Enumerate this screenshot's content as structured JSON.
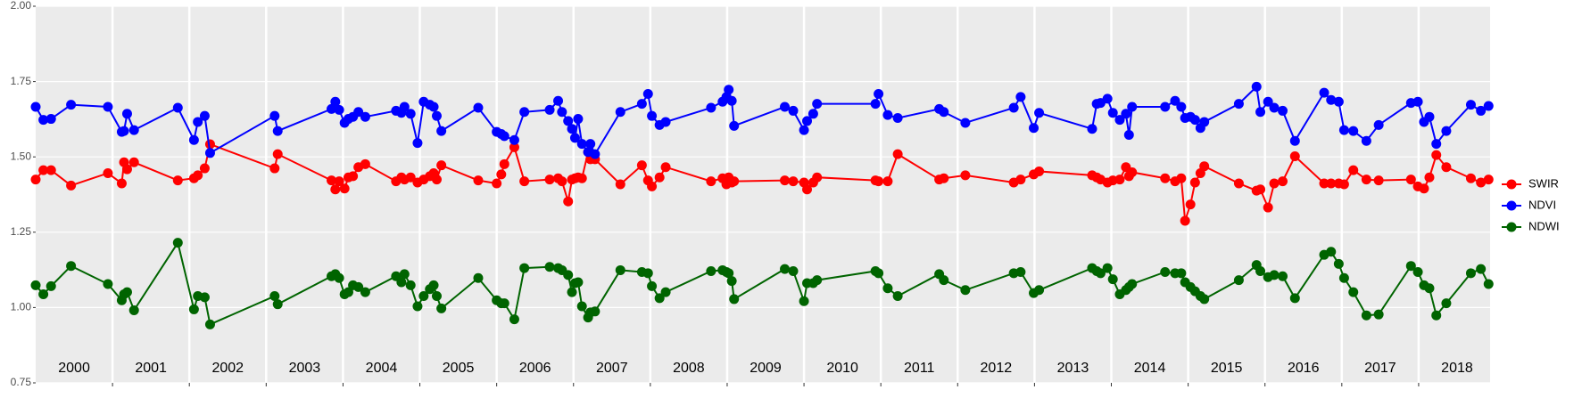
{
  "chart_data": {
    "type": "line",
    "markers": true,
    "x": [
      2000.0,
      2000.1,
      2000.2,
      2000.46,
      2000.94,
      2001.12,
      2001.15,
      2001.19,
      2001.28,
      2001.85,
      2002.06,
      2002.11,
      2002.2,
      2002.27,
      2003.11,
      2003.15,
      2003.85,
      2003.9,
      2003.95,
      2004.02,
      2004.07,
      2004.13,
      2004.2,
      2004.29,
      2004.69,
      2004.76,
      2004.8,
      2004.88,
      2004.97,
      2005.05,
      2005.13,
      2005.18,
      2005.22,
      2005.28,
      2005.76,
      2006.0,
      2006.06,
      2006.1,
      2006.23,
      2006.36,
      2006.69,
      2006.8,
      2006.85,
      2006.93,
      2006.98,
      2007.02,
      2007.06,
      2007.11,
      2007.19,
      2007.22,
      2007.28,
      2007.61,
      2007.89,
      2007.97,
      2008.02,
      2008.12,
      2008.2,
      2008.79,
      2008.94,
      2008.99,
      2009.02,
      2009.06,
      2009.09,
      2009.75,
      2009.86,
      2010.0,
      2010.04,
      2010.12,
      2010.17,
      2010.93,
      2010.97,
      2011.09,
      2011.22,
      2011.76,
      2011.82,
      2012.1,
      2012.73,
      2012.82,
      2012.99,
      2013.06,
      2013.75,
      2013.81,
      2013.86,
      2013.95,
      2014.02,
      2014.11,
      2014.19,
      2014.23,
      2014.27,
      2014.7,
      2014.83,
      2014.91,
      2014.96,
      2015.03,
      2015.09,
      2015.16,
      2015.21,
      2015.66,
      2015.89,
      2015.94,
      2016.04,
      2016.12,
      2016.23,
      2016.39,
      2016.77,
      2016.86,
      2016.96,
      2017.03,
      2017.15,
      2017.32,
      2017.48,
      2017.9,
      2017.99,
      2018.07,
      2018.14,
      2018.23,
      2018.36,
      2018.68,
      2018.81,
      2018.91
    ],
    "series": [
      {
        "name": "SWIR",
        "color": "#ff0000",
        "values": [
          1.425,
          1.456,
          1.456,
          1.405,
          1.446,
          1.412,
          1.482,
          1.459,
          1.482,
          1.422,
          1.429,
          1.439,
          1.462,
          1.542,
          1.462,
          1.509,
          1.422,
          1.392,
          1.419,
          1.395,
          1.432,
          1.436,
          1.466,
          1.476,
          1.419,
          1.432,
          1.425,
          1.432,
          1.415,
          1.425,
          1.436,
          1.446,
          1.425,
          1.472,
          1.422,
          1.412,
          1.442,
          1.476,
          1.532,
          1.419,
          1.425,
          1.429,
          1.419,
          1.352,
          1.425,
          1.429,
          1.432,
          1.429,
          1.516,
          1.492,
          1.492,
          1.409,
          1.472,
          1.422,
          1.402,
          1.432,
          1.466,
          1.419,
          1.429,
          1.409,
          1.432,
          1.415,
          1.419,
          1.422,
          1.419,
          1.415,
          1.392,
          1.415,
          1.432,
          1.422,
          1.419,
          1.419,
          1.509,
          1.425,
          1.429,
          1.439,
          1.415,
          1.425,
          1.442,
          1.452,
          1.439,
          1.432,
          1.425,
          1.415,
          1.422,
          1.425,
          1.466,
          1.436,
          1.449,
          1.429,
          1.419,
          1.429,
          1.288,
          1.342,
          1.415,
          1.446,
          1.469,
          1.412,
          1.388,
          1.392,
          1.332,
          1.412,
          1.419,
          1.502,
          1.412,
          1.412,
          1.412,
          1.409,
          1.456,
          1.425,
          1.422,
          1.425,
          1.402,
          1.395,
          1.432,
          1.506,
          1.466,
          1.429,
          1.415,
          1.425
        ]
      },
      {
        "name": "NDVI",
        "color": "#0000ff",
        "values": [
          1.666,
          1.623,
          1.626,
          1.673,
          1.666,
          1.583,
          1.586,
          1.643,
          1.589,
          1.663,
          1.556,
          1.616,
          1.636,
          1.513,
          1.636,
          1.586,
          1.659,
          1.683,
          1.656,
          1.613,
          1.626,
          1.633,
          1.649,
          1.633,
          1.653,
          1.646,
          1.666,
          1.643,
          1.546,
          1.683,
          1.673,
          1.666,
          1.636,
          1.586,
          1.663,
          1.583,
          1.576,
          1.569,
          1.556,
          1.649,
          1.656,
          1.686,
          1.649,
          1.619,
          1.593,
          1.563,
          1.626,
          1.543,
          1.516,
          1.543,
          1.509,
          1.649,
          1.676,
          1.709,
          1.636,
          1.606,
          1.616,
          1.663,
          1.683,
          1.699,
          1.723,
          1.686,
          1.603,
          1.666,
          1.653,
          1.589,
          1.619,
          1.643,
          1.676,
          1.676,
          1.709,
          1.639,
          1.629,
          1.659,
          1.649,
          1.613,
          1.663,
          1.699,
          1.596,
          1.646,
          1.593,
          1.676,
          1.679,
          1.693,
          1.646,
          1.623,
          1.643,
          1.573,
          1.666,
          1.666,
          1.686,
          1.666,
          1.629,
          1.633,
          1.623,
          1.596,
          1.616,
          1.676,
          1.733,
          1.649,
          1.683,
          1.663,
          1.653,
          1.553,
          1.713,
          1.689,
          1.683,
          1.589,
          1.586,
          1.553,
          1.606,
          1.679,
          1.683,
          1.616,
          1.633,
          1.543,
          1.586,
          1.673,
          1.653,
          1.669
        ]
      },
      {
        "name": "NDWI",
        "color": "#006400",
        "values": [
          1.074,
          1.044,
          1.071,
          1.138,
          1.078,
          1.024,
          1.044,
          1.051,
          0.991,
          1.215,
          0.994,
          1.038,
          1.034,
          0.944,
          1.038,
          1.011,
          1.104,
          1.111,
          1.098,
          1.044,
          1.051,
          1.074,
          1.068,
          1.051,
          1.104,
          1.084,
          1.111,
          1.074,
          1.004,
          1.038,
          1.061,
          1.074,
          1.038,
          0.997,
          1.098,
          1.024,
          1.014,
          1.014,
          0.961,
          1.131,
          1.135,
          1.131,
          1.124,
          1.108,
          1.051,
          1.081,
          1.084,
          1.004,
          0.967,
          0.984,
          0.987,
          1.124,
          1.118,
          1.114,
          1.071,
          1.031,
          1.051,
          1.121,
          1.124,
          1.118,
          1.114,
          1.088,
          1.028,
          1.128,
          1.121,
          1.021,
          1.081,
          1.081,
          1.091,
          1.121,
          1.114,
          1.064,
          1.038,
          1.111,
          1.091,
          1.058,
          1.114,
          1.118,
          1.048,
          1.058,
          1.131,
          1.121,
          1.114,
          1.131,
          1.094,
          1.044,
          1.058,
          1.068,
          1.078,
          1.118,
          1.114,
          1.114,
          1.084,
          1.068,
          1.054,
          1.038,
          1.028,
          1.091,
          1.141,
          1.121,
          1.101,
          1.108,
          1.104,
          1.031,
          1.175,
          1.185,
          1.145,
          1.098,
          1.051,
          0.974,
          0.977,
          1.138,
          1.118,
          1.074,
          1.064,
          0.974,
          1.014,
          1.114,
          1.128,
          1.078
        ]
      }
    ],
    "xlim": [
      2000,
      2018.93
    ],
    "xticks": [
      2001,
      2002,
      2003,
      2004,
      2005,
      2006,
      2007,
      2008,
      2009,
      2010,
      2011,
      2012,
      2013,
      2014,
      2015,
      2016,
      2017,
      2018
    ],
    "year_labels": [
      "2000",
      "2001",
      "2002",
      "2003",
      "2004",
      "2005",
      "2006",
      "2007",
      "2008",
      "2009",
      "2010",
      "2011",
      "2012",
      "2013",
      "2014",
      "2015",
      "2016",
      "2017",
      "2018"
    ],
    "ylim": [
      0.75,
      2.0
    ],
    "yticks": [
      {
        "value": 0.75,
        "label": "0.75"
      },
      {
        "value": 1.0,
        "label": "1.00"
      },
      {
        "value": 1.25,
        "label": "1.25"
      },
      {
        "value": 1.5,
        "label": "1.50"
      },
      {
        "value": 1.75,
        "label": "1.75"
      },
      {
        "value": 2.0,
        "label": "2.00"
      }
    ],
    "grid": true,
    "legend": "right"
  }
}
